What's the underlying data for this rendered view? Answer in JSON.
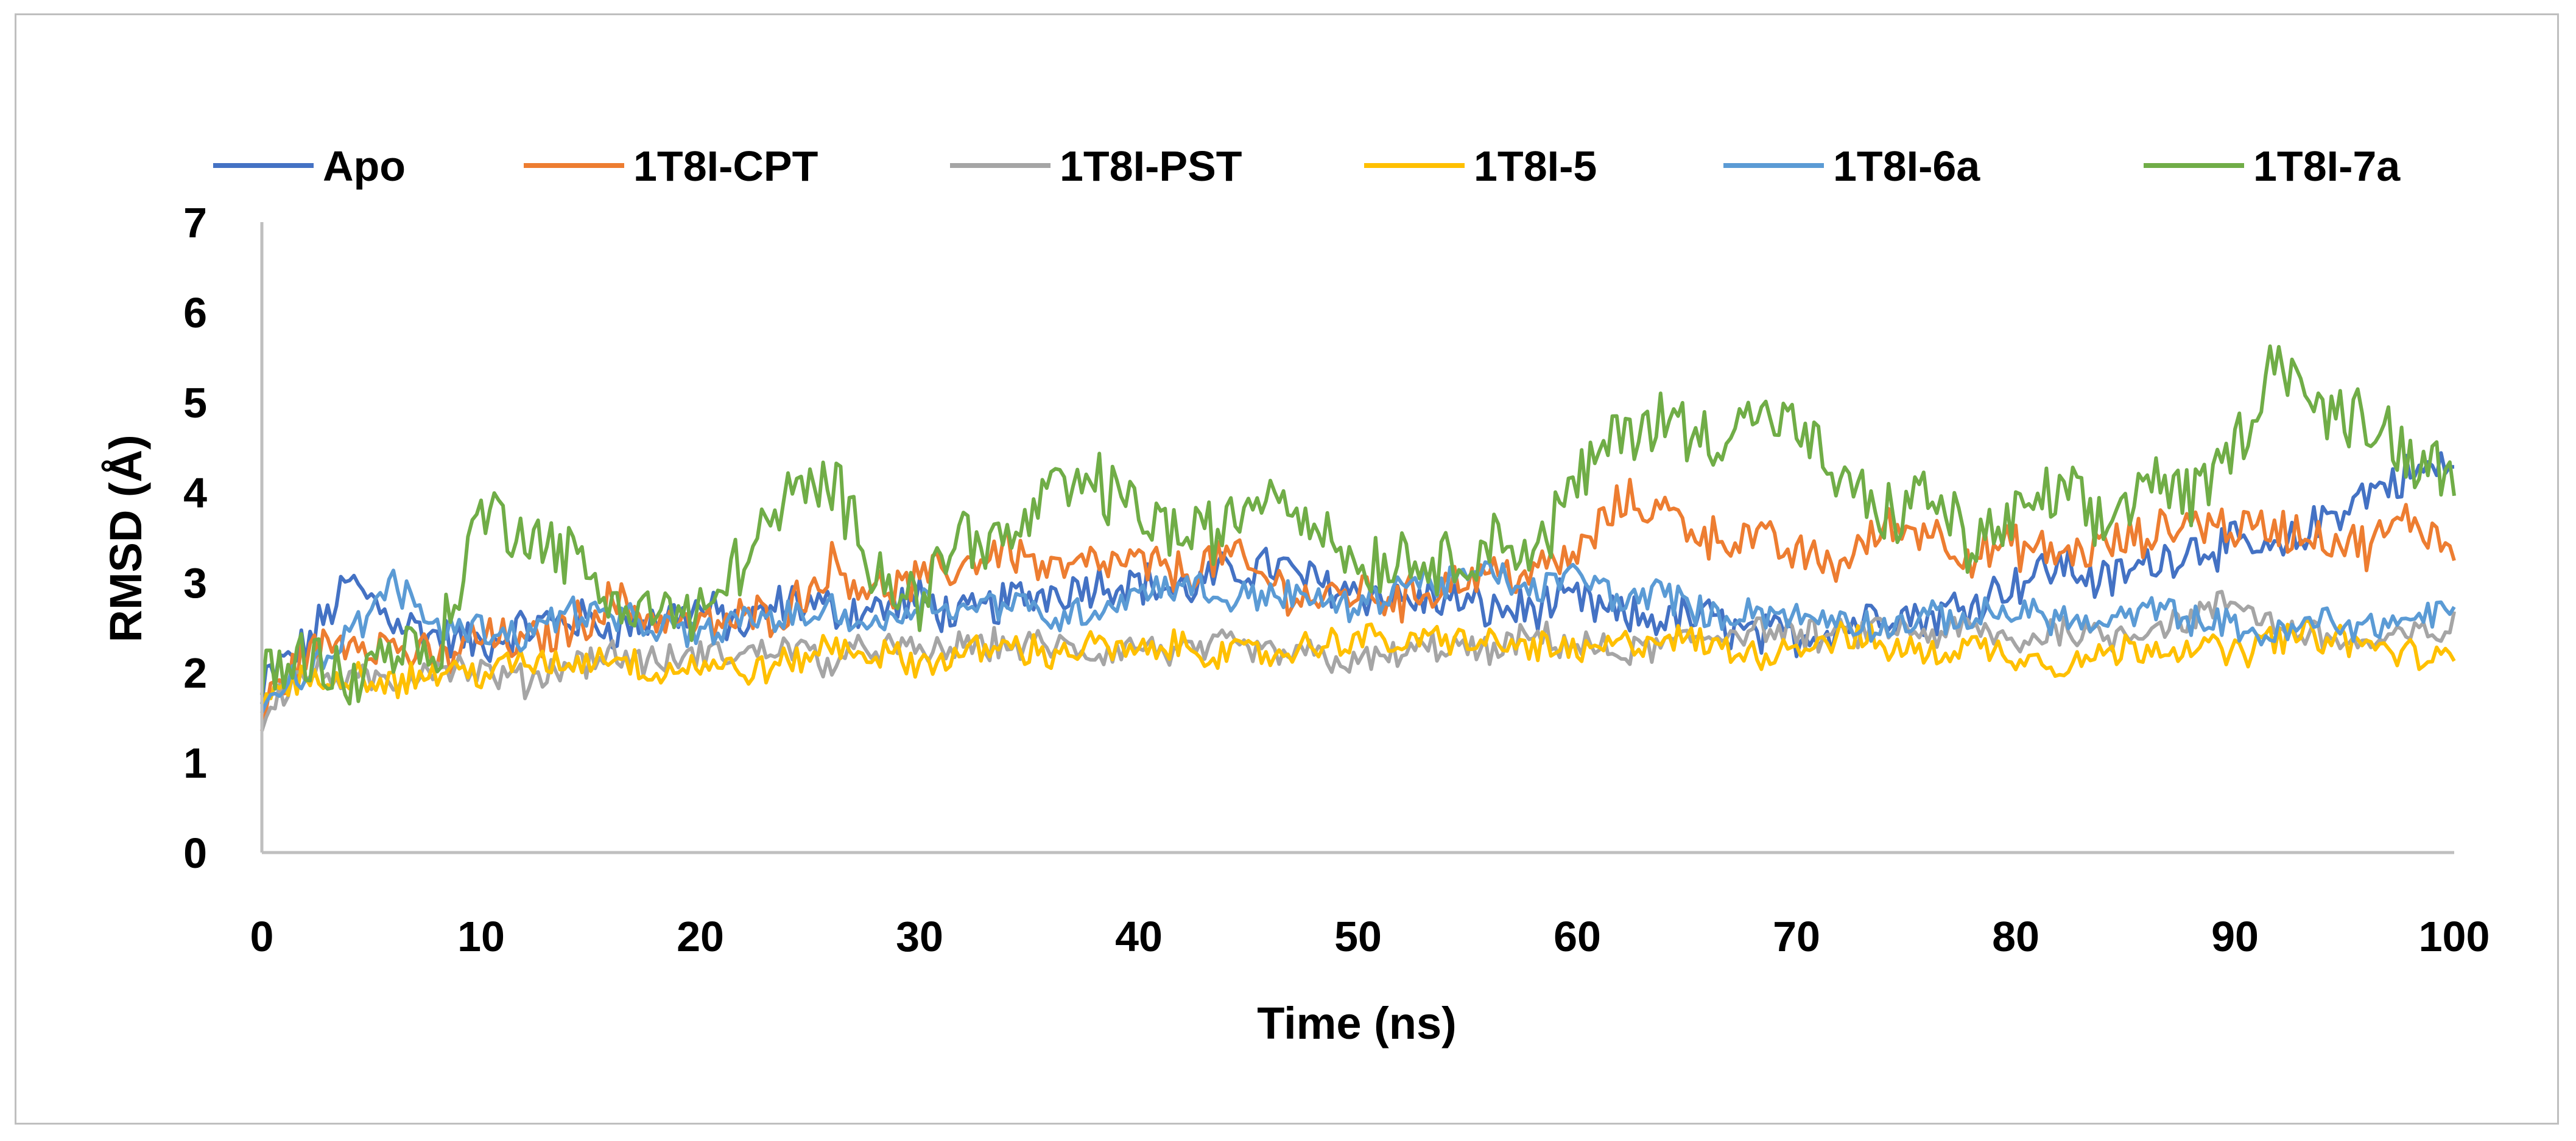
{
  "chart_data": {
    "type": "line",
    "title": "",
    "xlabel": "Time (ns)",
    "ylabel": "RMSD (Å)",
    "xlim": [
      0,
      100
    ],
    "ylim": [
      0,
      7
    ],
    "xticks": [
      "0",
      "10",
      "20",
      "30",
      "40",
      "50",
      "60",
      "70",
      "80",
      "90",
      "100"
    ],
    "yticks": [
      "0",
      "1",
      "2",
      "3",
      "4",
      "5",
      "6",
      "7"
    ],
    "grid": false,
    "legend_position": "top",
    "sample_step_ns": 2,
    "series": [
      {
        "name": "Apo",
        "color": "#4472C4",
        "values": [
          1.9,
          2.3,
          3.0,
          2.6,
          2.4,
          2.3,
          2.5,
          2.6,
          2.5,
          2.6,
          2.7,
          2.5,
          2.8,
          2.7,
          2.7,
          2.8,
          2.6,
          2.8,
          2.9,
          3.0,
          3.0,
          2.9,
          3.1,
          3.2,
          3.0,
          2.9,
          2.8,
          2.8,
          2.7,
          2.7,
          2.8,
          2.6,
          2.6,
          2.6,
          2.4,
          2.4,
          2.5,
          2.7,
          2.6,
          2.8,
          3.0,
          3.2,
          3.0,
          3.2,
          3.4,
          3.4,
          3.3,
          3.7,
          4.0,
          4.2,
          4.3
        ]
      },
      {
        "name": "1T8I-CPT",
        "color": "#ED7D31",
        "values": [
          1.6,
          2.2,
          2.4,
          2.3,
          2.1,
          2.4,
          2.3,
          2.5,
          2.8,
          2.6,
          2.5,
          2.6,
          2.7,
          3.2,
          2.9,
          3.0,
          3.2,
          3.4,
          3.1,
          3.2,
          3.2,
          3.1,
          3.3,
          3.0,
          2.8,
          2.9,
          2.8,
          3.0,
          3.1,
          3.1,
          3.3,
          3.9,
          3.8,
          3.5,
          3.5,
          3.3,
          3.2,
          3.6,
          3.6,
          3.3,
          3.4,
          3.3,
          3.4,
          3.5,
          3.7,
          3.6,
          3.6,
          3.5,
          3.4,
          3.7,
          3.4
        ]
      },
      {
        "name": "1T8I-PST",
        "color": "#A5A5A5",
        "values": [
          1.6,
          2.0,
          1.9,
          1.9,
          2.1,
          2.0,
          1.9,
          2.1,
          2.2,
          2.1,
          2.2,
          2.2,
          2.3,
          2.1,
          2.3,
          2.2,
          2.3,
          2.3,
          2.3,
          2.2,
          2.3,
          2.2,
          2.3,
          2.2,
          2.2,
          2.1,
          2.2,
          2.3,
          2.2,
          2.4,
          2.3,
          2.2,
          2.3,
          2.4,
          2.5,
          2.4,
          2.4,
          2.5,
          2.4,
          2.5,
          2.3,
          2.5,
          2.4,
          2.5,
          2.6,
          2.8,
          2.5,
          2.4,
          2.3,
          2.4,
          2.5
        ]
      },
      {
        "name": "1T8I-5",
        "color": "#FFC000",
        "values": [
          1.8,
          1.9,
          2.0,
          1.9,
          2.0,
          2.0,
          2.1,
          2.1,
          2.2,
          2.0,
          2.1,
          2.0,
          2.1,
          2.3,
          2.2,
          2.1,
          2.2,
          2.3,
          2.2,
          2.3,
          2.2,
          2.3,
          2.2,
          2.2,
          2.3,
          2.4,
          2.3,
          2.4,
          2.3,
          2.3,
          2.2,
          2.3,
          2.4,
          2.3,
          2.2,
          2.3,
          2.4,
          2.3,
          2.2,
          2.3,
          2.2,
          2.1,
          2.2,
          2.3,
          2.3,
          2.2,
          2.4,
          2.4,
          2.3,
          2.2,
          2.1
        ]
      },
      {
        "name": "1T8I-6a",
        "color": "#5B9BD5",
        "values": [
          1.8,
          2.0,
          2.4,
          3.0,
          2.5,
          2.5,
          2.4,
          2.7,
          2.6,
          2.5,
          2.4,
          2.6,
          2.6,
          2.7,
          2.5,
          2.8,
          2.7,
          2.8,
          2.6,
          2.7,
          2.9,
          3.0,
          2.8,
          2.9,
          2.8,
          2.7,
          3.0,
          3.0,
          3.1,
          2.9,
          3.1,
          2.8,
          2.9,
          2.6,
          2.7,
          2.6,
          2.6,
          2.5,
          2.6,
          2.6,
          2.7,
          2.6,
          2.5,
          2.7,
          2.6,
          2.5,
          2.4,
          2.6,
          2.5,
          2.6,
          2.7
        ]
      },
      {
        "name": "1T8I-7a",
        "color": "#70AD47",
        "values": [
          2.0,
          2.2,
          1.9,
          2.3,
          2.2,
          3.8,
          3.6,
          3.3,
          2.8,
          2.7,
          2.6,
          3.3,
          3.9,
          4.1,
          3.2,
          2.8,
          3.6,
          3.4,
          4.0,
          4.1,
          3.8,
          3.5,
          3.6,
          4.1,
          3.7,
          3.2,
          3.3,
          3.2,
          3.5,
          3.3,
          4.1,
          4.7,
          4.8,
          4.6,
          4.9,
          4.7,
          4.1,
          3.7,
          4.0,
          3.4,
          3.7,
          4.0,
          3.6,
          4.2,
          3.9,
          4.5,
          5.6,
          4.8,
          4.9,
          4.4,
          4.3
        ]
      }
    ]
  }
}
